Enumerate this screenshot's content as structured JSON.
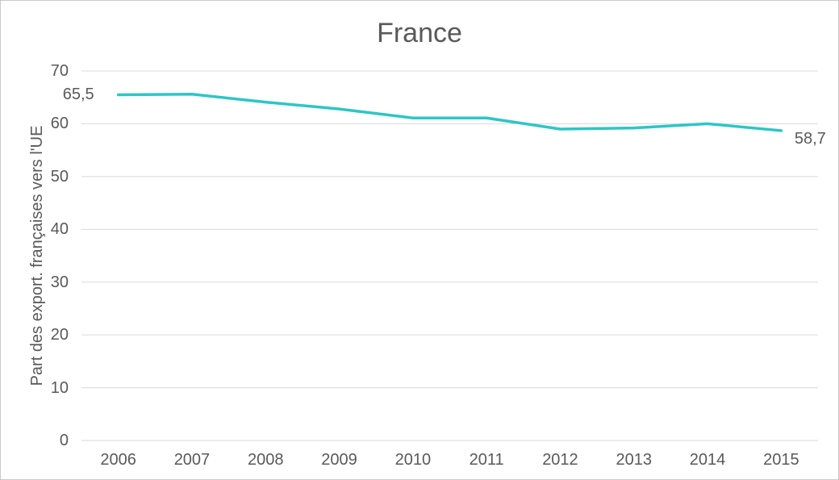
{
  "chart_data": {
    "type": "line",
    "title": "France",
    "ylabel": "Part des export. françaises vers l'UE",
    "categories": [
      "2006",
      "2007",
      "2008",
      "2009",
      "2010",
      "2011",
      "2012",
      "2013",
      "2014",
      "2015"
    ],
    "series": [
      {
        "name": "Part des export. françaises vers l'UE",
        "values": [
          65.5,
          65.6,
          64.1,
          62.8,
          61.1,
          61.1,
          59.0,
          59.2,
          60.0,
          58.7
        ]
      }
    ],
    "ylim": [
      0,
      70
    ],
    "yticks": [
      0,
      10,
      20,
      30,
      40,
      50,
      60,
      70
    ],
    "grid": true,
    "legend": "none",
    "annotations": [
      {
        "x": "2006",
        "value": 65.5,
        "text": "65,5"
      },
      {
        "x": "2015",
        "value": 58.7,
        "text": "58,7"
      }
    ],
    "line_color": "#2ec5c6",
    "grid_color": "#d9d9d9",
    "text_color": "#595959"
  }
}
